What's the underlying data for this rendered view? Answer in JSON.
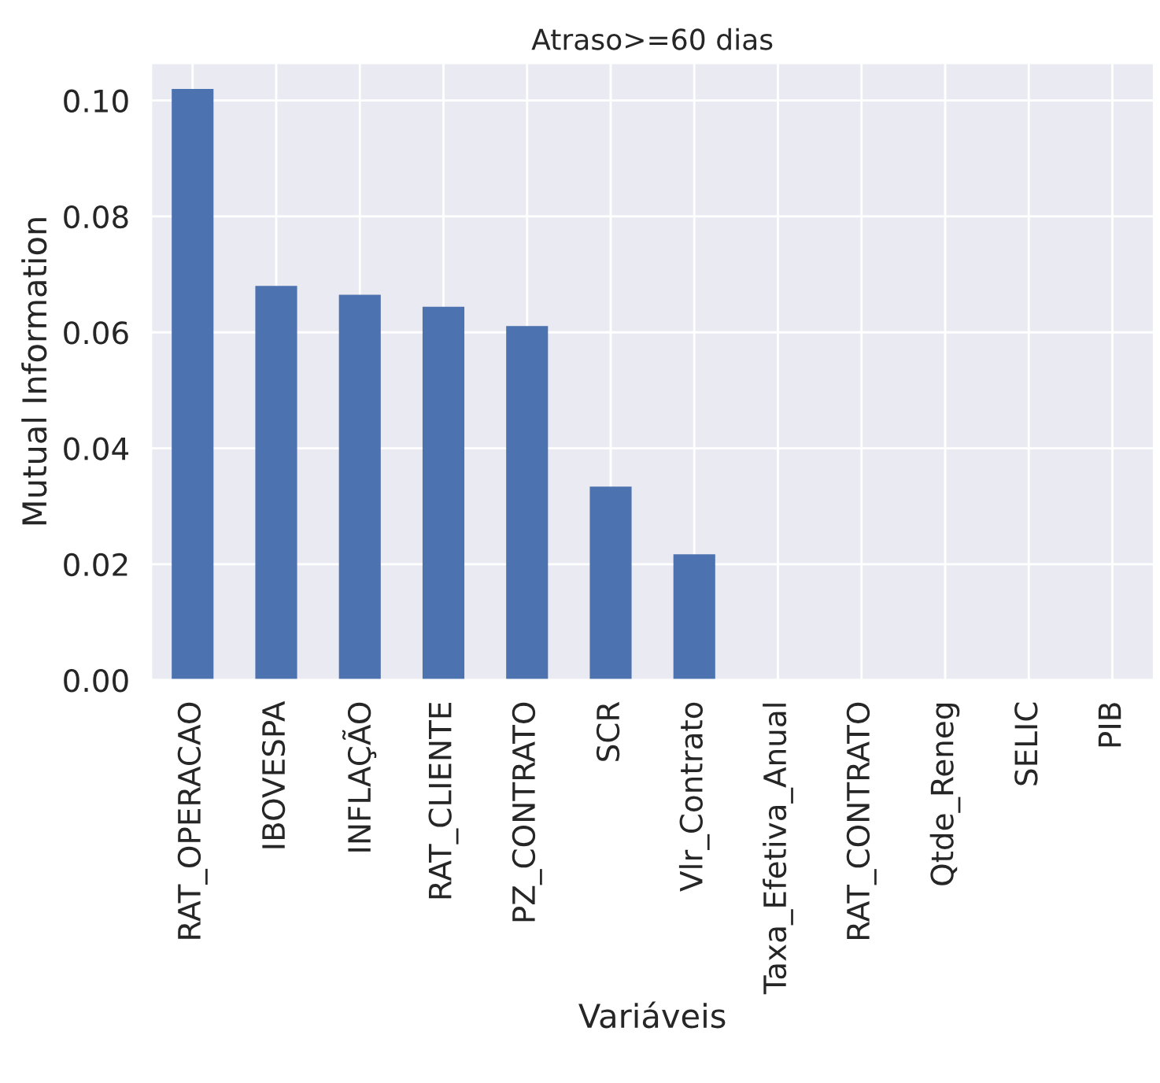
{
  "chart_data": {
    "type": "bar",
    "title": "Atraso>=60 dias",
    "xlabel": "Variáveis",
    "ylabel": "Mutual Information",
    "categories": [
      "RAT_OPERACAO",
      "IBOVESPA",
      "INFLAÇÃO",
      "RAT_CLIENTE",
      "PZ_CONTRATO",
      "SCR",
      "Vlr_Contrato",
      "Taxa_Efetiva_Anual",
      "RAT_CONTRATO",
      "Qtde_Reneg",
      "SELIC",
      "PIB"
    ],
    "values": [
      0.102,
      0.068,
      0.0665,
      0.0644,
      0.0611,
      0.0334,
      0.0217,
      0,
      0,
      0,
      0,
      0
    ],
    "color": "#4c72b0",
    "ylim": [
      0,
      0.1065
    ],
    "yticks": [
      {
        "value": 0,
        "label": "0.00"
      },
      {
        "value": 0.02,
        "label": "0.02"
      },
      {
        "value": 0.04,
        "label": "0.04"
      },
      {
        "value": 0.06,
        "label": "0.06"
      },
      {
        "value": 0.08,
        "label": "0.08"
      },
      {
        "value": 0.1,
        "label": "0.10"
      }
    ],
    "grid": true
  }
}
